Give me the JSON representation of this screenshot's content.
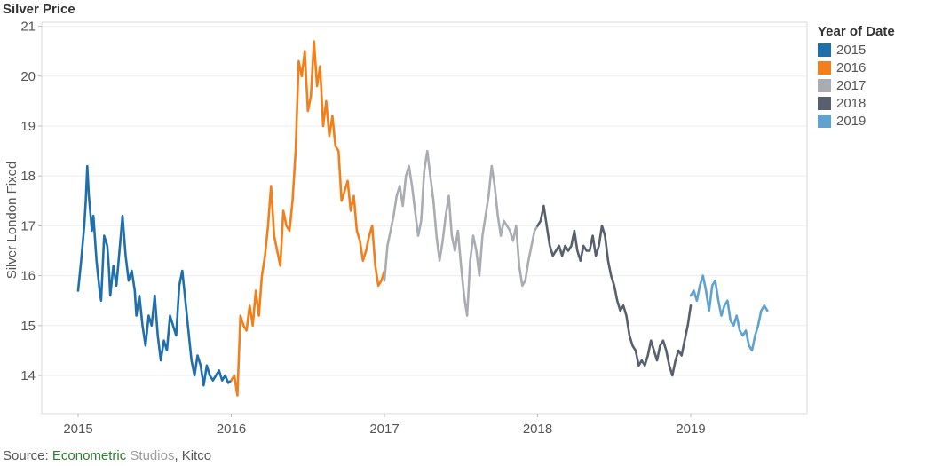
{
  "chart_data": {
    "type": "line",
    "title": "Silver Price",
    "xlabel": "",
    "ylabel": "Silver London Fixed",
    "xlim": [
      2015.0,
      2019.7
    ],
    "ylim": [
      13.2,
      21.2
    ],
    "x_ticks": [
      "2015",
      "2016",
      "2017",
      "2018",
      "2019"
    ],
    "y_ticks": [
      14,
      15,
      16,
      17,
      18,
      19,
      20,
      21
    ],
    "grid": true,
    "legend": {
      "title": "Year of Date",
      "position": "right"
    },
    "series": [
      {
        "name": "2015",
        "color": "#1f6fad",
        "x": [
          2015.0,
          2015.02,
          2015.04,
          2015.05,
          2015.06,
          2015.07,
          2015.09,
          2015.1,
          2015.12,
          2015.14,
          2015.15,
          2015.17,
          2015.19,
          2015.2,
          2015.21,
          2015.23,
          2015.25,
          2015.27,
          2015.29,
          2015.31,
          2015.33,
          2015.35,
          2015.37,
          2015.38,
          2015.4,
          2015.42,
          2015.44,
          2015.46,
          2015.48,
          2015.5,
          2015.52,
          2015.54,
          2015.56,
          2015.58,
          2015.6,
          2015.62,
          2015.64,
          2015.66,
          2015.68,
          2015.7,
          2015.72,
          2015.74,
          2015.76,
          2015.78,
          2015.8,
          2015.82,
          2015.84,
          2015.86,
          2015.88,
          2015.9,
          2015.92,
          2015.94,
          2015.96,
          2015.98,
          2016.0
        ],
        "y": [
          15.7,
          16.3,
          17.0,
          17.5,
          18.2,
          17.6,
          16.9,
          17.2,
          16.3,
          15.7,
          15.5,
          16.8,
          16.6,
          16.2,
          15.6,
          16.2,
          15.8,
          16.5,
          17.2,
          16.4,
          15.9,
          16.1,
          15.7,
          15.2,
          15.6,
          15.0,
          14.6,
          15.2,
          15.0,
          15.6,
          14.8,
          14.3,
          14.7,
          14.5,
          15.2,
          15.0,
          14.8,
          15.8,
          16.1,
          15.5,
          14.9,
          14.3,
          14.0,
          14.4,
          14.2,
          13.8,
          14.2,
          14.0,
          13.9,
          14.0,
          14.1,
          13.9,
          14.0,
          13.85,
          13.9
        ]
      },
      {
        "name": "2016",
        "color": "#f07f1c",
        "x": [
          2016.0,
          2016.02,
          2016.04,
          2016.05,
          2016.06,
          2016.08,
          2016.1,
          2016.12,
          2016.14,
          2016.16,
          2016.18,
          2016.2,
          2016.22,
          2016.24,
          2016.26,
          2016.28,
          2016.3,
          2016.32,
          2016.34,
          2016.36,
          2016.38,
          2016.4,
          2016.42,
          2016.44,
          2016.46,
          2016.48,
          2016.5,
          2016.52,
          2016.54,
          2016.56,
          2016.58,
          2016.6,
          2016.62,
          2016.64,
          2016.66,
          2016.68,
          2016.7,
          2016.72,
          2016.74,
          2016.76,
          2016.78,
          2016.8,
          2016.82,
          2016.84,
          2016.86,
          2016.88,
          2016.9,
          2016.92,
          2016.94,
          2016.96,
          2016.98,
          2017.0
        ],
        "y": [
          13.9,
          14.0,
          13.6,
          14.4,
          15.2,
          15.0,
          14.9,
          15.4,
          15.0,
          15.7,
          15.2,
          16.0,
          16.4,
          17.0,
          17.8,
          16.8,
          16.5,
          16.2,
          17.3,
          17.0,
          16.9,
          17.5,
          18.5,
          20.3,
          20.0,
          20.5,
          19.3,
          19.6,
          20.7,
          19.8,
          20.2,
          19.0,
          19.5,
          18.8,
          19.2,
          18.6,
          18.5,
          17.5,
          17.7,
          17.9,
          17.3,
          17.6,
          16.9,
          16.7,
          16.3,
          16.5,
          16.8,
          17.0,
          16.2,
          15.8,
          15.9,
          16.1
        ]
      },
      {
        "name": "2017",
        "color": "#a9adb3",
        "x": [
          2017.0,
          2017.02,
          2017.04,
          2017.06,
          2017.08,
          2017.1,
          2017.12,
          2017.14,
          2017.16,
          2017.18,
          2017.2,
          2017.22,
          2017.24,
          2017.26,
          2017.28,
          2017.3,
          2017.32,
          2017.34,
          2017.36,
          2017.38,
          2017.4,
          2017.42,
          2017.44,
          2017.46,
          2017.48,
          2017.5,
          2017.52,
          2017.54,
          2017.56,
          2017.58,
          2017.6,
          2017.62,
          2017.64,
          2017.66,
          2017.68,
          2017.7,
          2017.72,
          2017.74,
          2017.76,
          2017.78,
          2017.8,
          2017.82,
          2017.84,
          2017.86,
          2017.88,
          2017.9,
          2017.92,
          2017.94,
          2017.96,
          2017.98,
          2018.0
        ],
        "y": [
          15.9,
          16.6,
          16.9,
          17.2,
          17.6,
          17.8,
          17.4,
          18.0,
          18.2,
          17.8,
          17.3,
          16.8,
          17.1,
          18.1,
          18.5,
          18.0,
          17.5,
          16.8,
          16.3,
          16.7,
          17.2,
          17.6,
          16.8,
          16.5,
          16.9,
          16.2,
          15.6,
          15.2,
          16.3,
          16.8,
          16.5,
          16.0,
          16.8,
          17.2,
          17.6,
          18.2,
          17.8,
          17.2,
          16.8,
          17.1,
          17.0,
          16.9,
          16.7,
          17.0,
          16.2,
          15.8,
          15.9,
          16.3,
          16.6,
          16.9,
          17.0
        ]
      },
      {
        "name": "2018",
        "color": "#57606c",
        "x": [
          2018.0,
          2018.02,
          2018.04,
          2018.06,
          2018.08,
          2018.1,
          2018.12,
          2018.14,
          2018.16,
          2018.18,
          2018.2,
          2018.22,
          2018.24,
          2018.26,
          2018.28,
          2018.3,
          2018.32,
          2018.34,
          2018.36,
          2018.38,
          2018.4,
          2018.42,
          2018.44,
          2018.46,
          2018.48,
          2018.5,
          2018.52,
          2018.54,
          2018.56,
          2018.58,
          2018.6,
          2018.62,
          2018.64,
          2018.66,
          2018.68,
          2018.7,
          2018.72,
          2018.74,
          2018.76,
          2018.78,
          2018.8,
          2018.82,
          2018.84,
          2018.86,
          2018.88,
          2018.9,
          2018.92,
          2018.94,
          2018.96,
          2018.98,
          2019.0
        ],
        "y": [
          17.0,
          17.1,
          17.4,
          17.0,
          16.6,
          16.4,
          16.5,
          16.6,
          16.4,
          16.6,
          16.5,
          16.6,
          16.9,
          16.5,
          16.3,
          16.6,
          16.5,
          16.5,
          16.8,
          16.4,
          16.6,
          17.0,
          16.8,
          16.3,
          16.0,
          15.8,
          15.5,
          15.3,
          15.4,
          15.2,
          14.8,
          14.6,
          14.5,
          14.2,
          14.3,
          14.2,
          14.4,
          14.7,
          14.5,
          14.3,
          14.6,
          14.7,
          14.5,
          14.2,
          14.0,
          14.3,
          14.5,
          14.4,
          14.7,
          15.0,
          15.4
        ]
      },
      {
        "name": "2019",
        "color": "#5fa2d0",
        "x": [
          2019.0,
          2019.02,
          2019.04,
          2019.06,
          2019.08,
          2019.1,
          2019.12,
          2019.14,
          2019.16,
          2019.18,
          2019.2,
          2019.22,
          2019.24,
          2019.26,
          2019.28,
          2019.3,
          2019.32,
          2019.34,
          2019.36,
          2019.38,
          2019.4,
          2019.42,
          2019.44,
          2019.46,
          2019.48,
          2019.5
        ],
        "y": [
          15.6,
          15.7,
          15.5,
          15.8,
          16.0,
          15.7,
          15.3,
          15.8,
          15.9,
          15.5,
          15.2,
          15.4,
          15.5,
          15.1,
          15.0,
          15.2,
          14.9,
          14.8,
          14.9,
          14.6,
          14.5,
          14.8,
          15.0,
          15.3,
          15.4,
          15.3
        ]
      }
    ],
    "source": {
      "prefix": "Source: ",
      "part1": "Econometric",
      "part2": " Studios",
      "part3": ", Kitco"
    }
  }
}
